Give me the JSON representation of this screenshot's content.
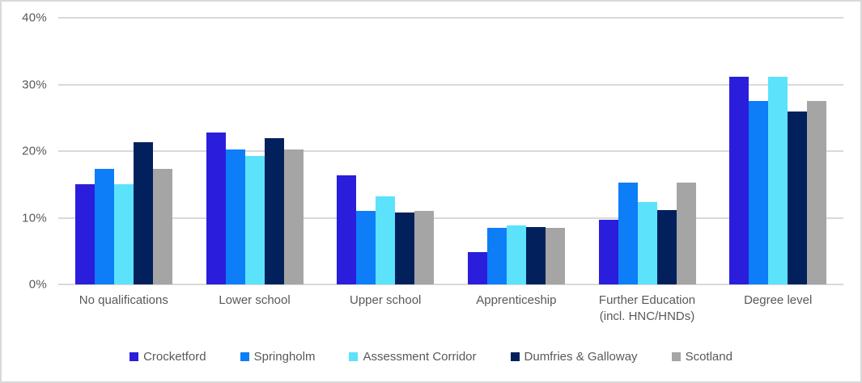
{
  "chart_data": {
    "type": "bar",
    "title": "",
    "categories": [
      "No qualifications",
      "Lower school",
      "Upper school",
      "Apprenticeship",
      "Further Education (incl. HNC/HNDs)",
      "Degree level"
    ],
    "series": [
      {
        "name": "Crocketford",
        "color": "#2a1edc",
        "values": [
          15.0,
          22.8,
          16.4,
          4.8,
          9.7,
          31.1
        ]
      },
      {
        "name": "Springholm",
        "color": "#0e7df8",
        "values": [
          17.3,
          20.2,
          11.0,
          8.5,
          15.3,
          27.5
        ]
      },
      {
        "name": "Assessment Corridor",
        "color": "#5ce2fb",
        "values": [
          15.0,
          19.3,
          13.2,
          8.9,
          12.4,
          31.2
        ]
      },
      {
        "name": "Dumfries & Galloway",
        "color": "#02215c",
        "values": [
          21.3,
          22.0,
          10.8,
          8.6,
          11.2,
          26.0
        ]
      },
      {
        "name": "Scotland",
        "color": "#a5a5a5",
        "values": [
          17.3,
          20.2,
          11.0,
          8.5,
          15.3,
          27.5
        ]
      }
    ],
    "y_axis": {
      "min": 0,
      "max": 40,
      "tick_step": 10,
      "tick_labels": [
        "0%",
        "10%",
        "20%",
        "30%",
        "40%"
      ],
      "grid": true
    },
    "legend_position": "bottom"
  },
  "styles": {
    "grid_color": "#d9d9d9",
    "text_color": "#595959",
    "background": "#ffffff",
    "border_color": "#d9d9d9"
  }
}
